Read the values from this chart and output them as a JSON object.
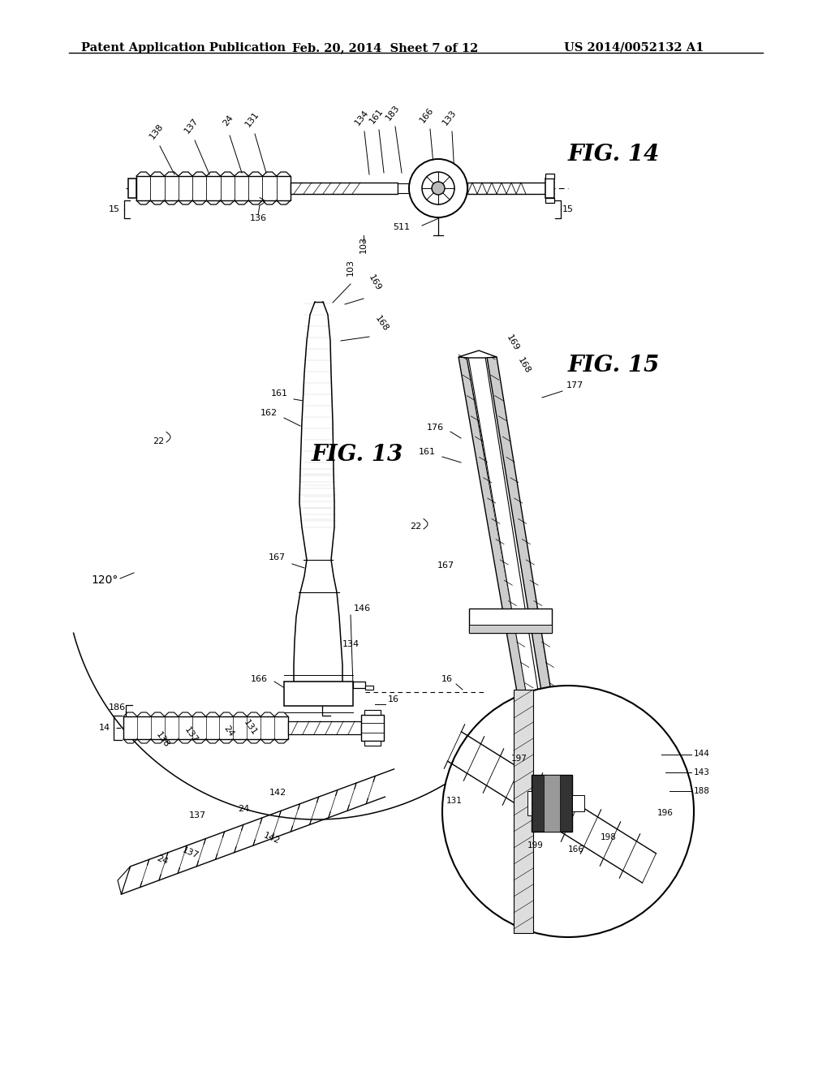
{
  "bg_color": "#ffffff",
  "header_left": "Patent Application Publication",
  "header_mid": "Feb. 20, 2014  Sheet 7 of 12",
  "header_right": "US 2014/0052132 A1",
  "fig14_label": "FIG. 14",
  "fig13_label": "FIG. 13",
  "fig15_label": "FIG. 15",
  "lc": "#000000",
  "gray": "#888888",
  "darkgray": "#333333",
  "hatch_gray": "#555555"
}
